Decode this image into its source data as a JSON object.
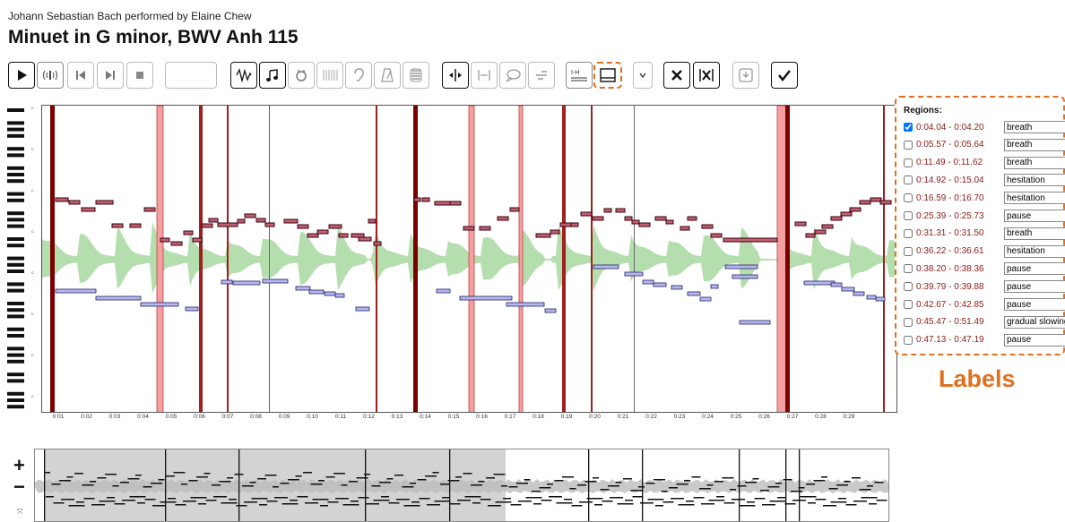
{
  "header": {
    "subtitle": "Johann Sebastian Bach performed by Elaine Chew",
    "title": "Minuet in G minor, BWV Anh 115"
  },
  "toolbar": {
    "buttons": [
      {
        "name": "play-button",
        "icon": "play-icon"
      },
      {
        "name": "metronome-click-button",
        "icon": "click-icon"
      },
      {
        "name": "skip-back-button",
        "icon": "skip-back-icon"
      },
      {
        "name": "skip-forward-button",
        "icon": "skip-forward-icon"
      },
      {
        "name": "stop-button",
        "icon": "stop-icon"
      },
      {
        "name": "waveform-toggle",
        "icon": "waveform-icon"
      },
      {
        "name": "notes-toggle",
        "icon": "music-note-icon"
      },
      {
        "name": "harmonics-toggle",
        "icon": "harmonics-icon"
      },
      {
        "name": "beats-toggle",
        "icon": "beats-icon"
      },
      {
        "name": "listen-toggle",
        "icon": "ear-icon"
      },
      {
        "name": "tempo-toggle",
        "icon": "metronome-icon"
      },
      {
        "name": "dynamics-toggle",
        "icon": "layers-icon"
      },
      {
        "name": "add-boundary-button",
        "icon": "boundary-icon"
      },
      {
        "name": "segment-button",
        "icon": "segment-icon"
      },
      {
        "name": "annotate-button",
        "icon": "speech-bubble-icon"
      },
      {
        "name": "align-button",
        "icon": "align-icon"
      },
      {
        "name": "label-grid-button",
        "icon": "label-grid-icon"
      },
      {
        "name": "label-panel-button",
        "icon": "label-panel-icon"
      },
      {
        "name": "dropdown-button",
        "icon": "chevron-down-icon"
      },
      {
        "name": "delete-button",
        "icon": "close-icon"
      },
      {
        "name": "delete-all-button",
        "icon": "close-box-icon"
      },
      {
        "name": "save-button",
        "icon": "save-icon"
      },
      {
        "name": "confirm-button",
        "icon": "check-icon"
      }
    ],
    "time_field_value": ""
  },
  "plot": {
    "x_ticks": [
      "0:01",
      "0:02",
      "0:03",
      "0:04",
      "0:05",
      "0:06",
      "0:07",
      "0:08",
      "0:09",
      "0:10",
      "0:11",
      "0:12",
      "0:13",
      "0:14",
      "0:15",
      "0:16",
      "0:17",
      "0:18",
      "0:19",
      "0:20",
      "0:21",
      "0:22",
      "0:23",
      "0:24",
      "0:25",
      "0:26",
      "0:27",
      "0:28",
      "0:29"
    ],
    "octave_labels": [
      "C8",
      "C7",
      "C6",
      "C5",
      "C4",
      "C3",
      "C2",
      "C1"
    ]
  },
  "regions": {
    "heading": "Regions:",
    "items": [
      {
        "time": "0:04.04 - 0:04.20",
        "label": "breath",
        "checked": true
      },
      {
        "time": "0:05.57 - 0:05.64",
        "label": "breath",
        "checked": false
      },
      {
        "time": "0:11.49 - 0:11.62",
        "label": "breath",
        "checked": false
      },
      {
        "time": "0:14.92 - 0:15.04",
        "label": "hesitation",
        "checked": false
      },
      {
        "time": "0:16.59 - 0:16.70",
        "label": "hesitation",
        "checked": false
      },
      {
        "time": "0:25.39 - 0:25.73",
        "label": "pause",
        "checked": false
      },
      {
        "time": "0:31.31 - 0:31.50",
        "label": "breath",
        "checked": false
      },
      {
        "time": "0:36.22 - 0:36.61",
        "label": "hesitation",
        "checked": false
      },
      {
        "time": "0:38.20 - 0:38.36",
        "label": "pause",
        "checked": false
      },
      {
        "time": "0:39.79 - 0:39.88",
        "label": "pause",
        "checked": false
      },
      {
        "time": "0:42.67 - 0:42.85",
        "label": "pause",
        "checked": false
      },
      {
        "time": "0:45.47 - 0:51.49",
        "label": "gradual slowing",
        "checked": false
      },
      {
        "time": "0:47.13 - 0:47.19",
        "label": "pause",
        "checked": false
      }
    ]
  },
  "callout": {
    "text": "Labels"
  },
  "overview": {
    "zoom_in": "+",
    "zoom_out": "−",
    "fit": "⤧"
  },
  "colors": {
    "accent": "#e07020",
    "region": "#8b0000",
    "treble": "#a0405a",
    "bass": "#8888d0",
    "waveform": "#a8d8a0"
  }
}
